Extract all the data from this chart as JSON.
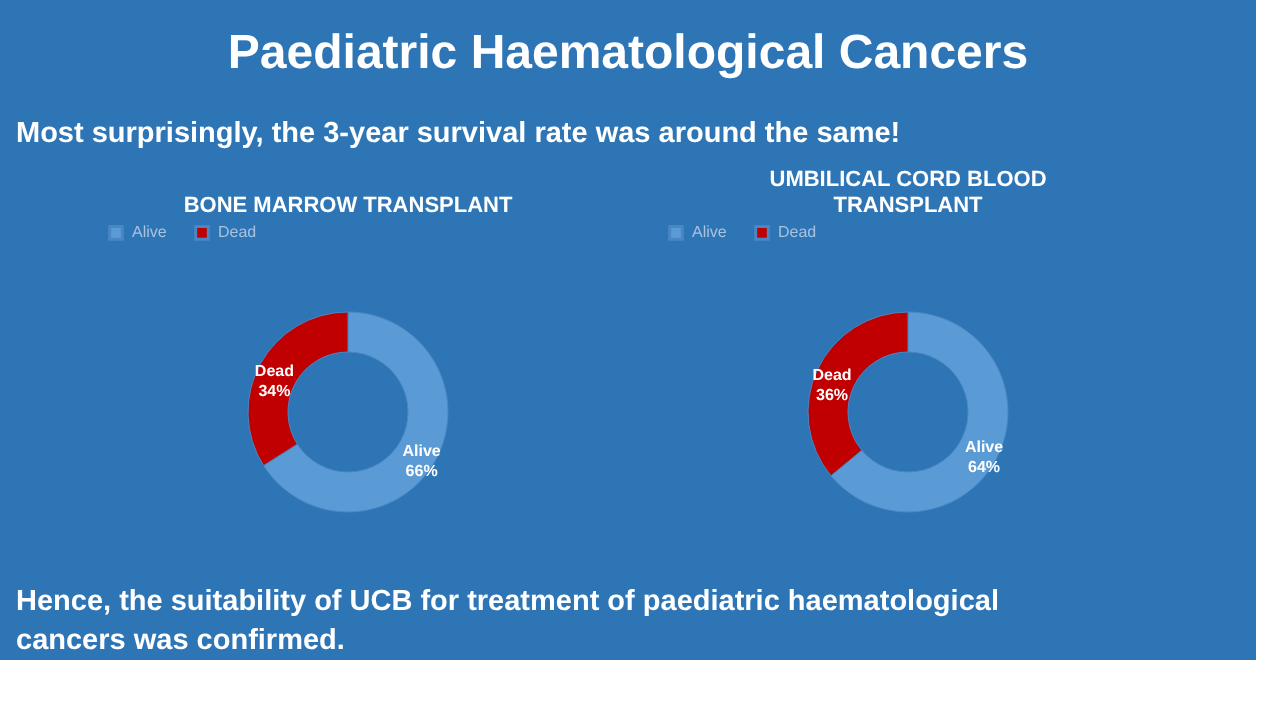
{
  "chart_data": [
    {
      "type": "other",
      "title": "Paediatric Haematological Cancers",
      "subtitle": "Most surprisingly, the 3-year survival rate was around the same!",
      "annotations": [
        "Hence, the suitability of UCB for treatment of paediatric haematological cancers was confirmed."
      ]
    },
    {
      "type": "donut",
      "title": "BONE MARROW TRANSPLANT",
      "categories": [
        "Alive",
        "Dead"
      ],
      "values": [
        66,
        34
      ],
      "colors": [
        "#5b9bd5",
        "#c00000"
      ],
      "value_labels": [
        "66%",
        "34%"
      ],
      "legend": "top"
    },
    {
      "type": "donut",
      "title": "UMBILICAL CORD BLOOD TRANSPLANT",
      "categories": [
        "Alive",
        "Dead"
      ],
      "values": [
        64,
        36
      ],
      "colors": [
        "#5b9bd5",
        "#c00000"
      ],
      "value_labels": [
        "64%",
        "36%"
      ],
      "legend": "top"
    }
  ]
}
